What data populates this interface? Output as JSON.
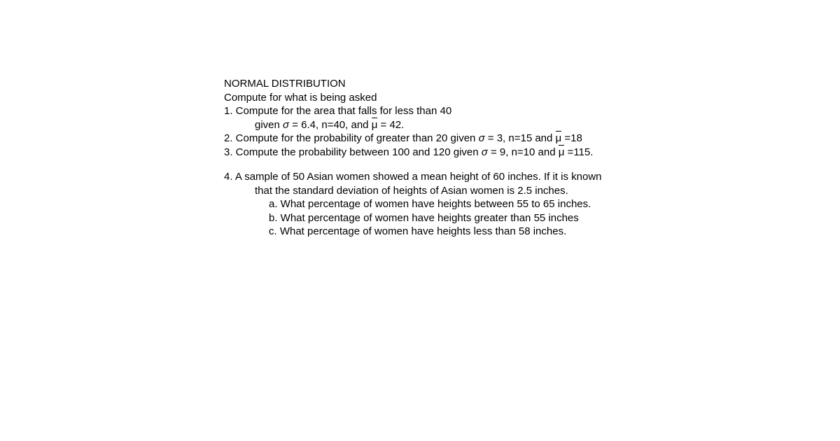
{
  "colors": {
    "text": "#000000",
    "background": "#ffffff"
  },
  "typography": {
    "font_family": "Arial",
    "font_size_pt": 11,
    "line_height": 1.3
  },
  "title": "NORMAL DISTRIBUTION",
  "subtitle": "Compute for what is being asked",
  "q1": {
    "line1_a": "1.   Compute for the area that falls for less than 40",
    "line2_a": "given ",
    "line2_b": "σ",
    "line2_c": " = 6.4, n=40, and  ",
    "line2_d": "μ",
    "line2_e": " = 42."
  },
  "q2": {
    "a": "2. Compute for the probability of greater than 20  given  ",
    "b": "σ",
    "c": " = 3, n=15 and  ",
    "d": "μ",
    "e": " =18"
  },
  "q3": {
    "a": "3. Compute the probability between 100 and 120 given  ",
    "b": "σ",
    "c": " = 9, n=10 and ",
    "d": "μ",
    "e": " =115."
  },
  "q4": {
    "l1": "4. A sample of 50 Asian women showed a mean height of 60 inches. If it is known",
    "l2": "that the standard deviation of heights of Asian women is 2.5 inches.",
    "a": "a. What percentage of  women have heights between 55 to 65 inches.",
    "b": "b. What percentage of  women have heights greater than 55 inches",
    "c": "c. What percentage of  women have heights less than 58 inches."
  }
}
